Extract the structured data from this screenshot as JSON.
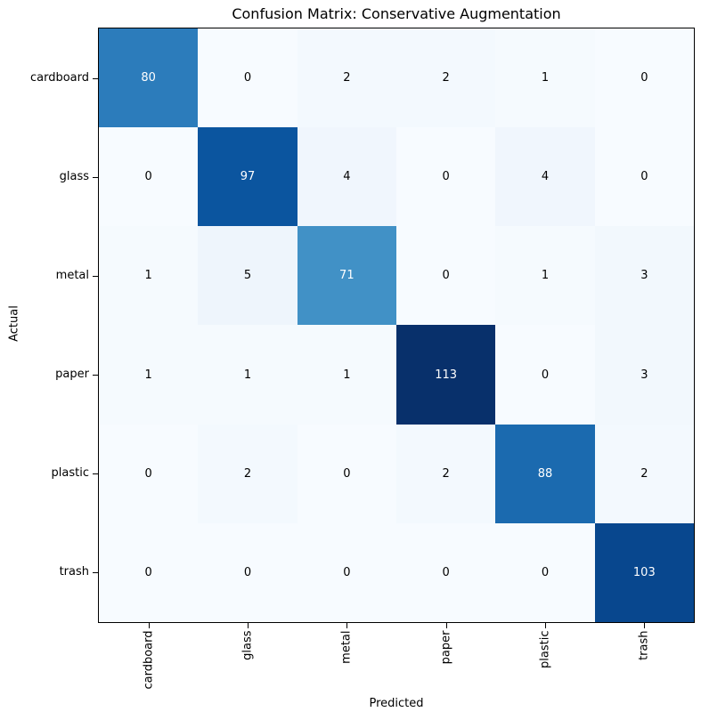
{
  "chart_data": {
    "type": "heatmap",
    "title": "Confusion Matrix: Conservative Augmentation",
    "xlabel": "Predicted",
    "ylabel": "Actual",
    "categories": [
      "cardboard",
      "glass",
      "metal",
      "paper",
      "plastic",
      "trash"
    ],
    "matrix": [
      [
        80,
        0,
        2,
        2,
        1,
        0
      ],
      [
        0,
        97,
        4,
        0,
        4,
        0
      ],
      [
        1,
        5,
        71,
        0,
        1,
        3
      ],
      [
        1,
        1,
        1,
        113,
        0,
        3
      ],
      [
        0,
        2,
        0,
        2,
        88,
        2
      ],
      [
        0,
        0,
        0,
        0,
        0,
        103
      ]
    ],
    "vmin": 0,
    "vmax": 113,
    "colormap": "Blues",
    "colors": {
      "cmap_low": "#f7fbff",
      "cmap_high": "#08306b",
      "cell_text_dark": "#000000",
      "cell_text_light": "#ffffff",
      "axis": "#000000",
      "background": "#ffffff"
    },
    "layout": {
      "grid": false,
      "legend": false,
      "x_tick_rotation_deg": 90
    }
  }
}
